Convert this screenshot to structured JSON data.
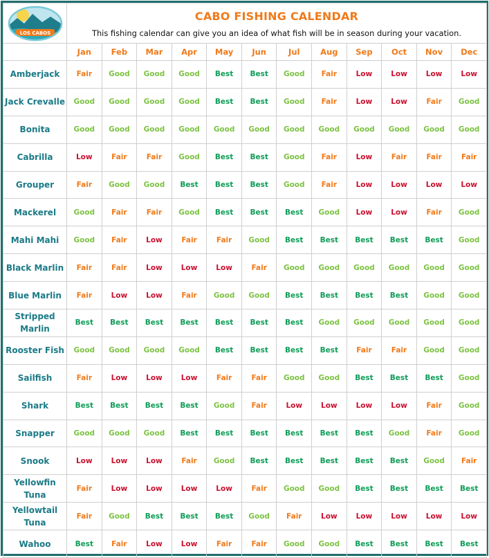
{
  "header": {
    "title": "CABO FISHING CALENDAR",
    "subtitle": "This fishing calendar can give you an idea of what fish will be in season during your vacation.",
    "logo_text": "LOS CABOS"
  },
  "colors": {
    "Best": "#0f9d58",
    "Good": "#7cc242",
    "Fair": "#f07a1a",
    "Low": "#c8102e",
    "fish_label": "#1a7a86",
    "accent": "#f07a1a",
    "border": "#1f6e6e"
  },
  "months": [
    "Jan",
    "Feb",
    "Mar",
    "Apr",
    "May",
    "Jun",
    "Jul",
    "Aug",
    "Sep",
    "Oct",
    "Nov",
    "Dec"
  ],
  "rows": [
    {
      "fish": "Amberjack",
      "ratings": [
        "Fair",
        "Good",
        "Good",
        "Good",
        "Best",
        "Best",
        "Good",
        "Fair",
        "Low",
        "Low",
        "Low",
        "Low"
      ]
    },
    {
      "fish": "Jack Crevalle",
      "ratings": [
        "Good",
        "Good",
        "Good",
        "Good",
        "Best",
        "Best",
        "Good",
        "Fair",
        "Low",
        "Low",
        "Fair",
        "Good"
      ]
    },
    {
      "fish": "Bonita",
      "ratings": [
        "Good",
        "Good",
        "Good",
        "Good",
        "Good",
        "Good",
        "Good",
        "Good",
        "Good",
        "Good",
        "Good",
        "Good"
      ]
    },
    {
      "fish": "Cabrilla",
      "ratings": [
        "Low",
        "Fair",
        "Fair",
        "Good",
        "Best",
        "Best",
        "Good",
        "Fair",
        "Low",
        "Fair",
        "Fair",
        "Fair"
      ]
    },
    {
      "fish": "Grouper",
      "ratings": [
        "Fair",
        "Good",
        "Good",
        "Best",
        "Best",
        "Best",
        "Good",
        "Fair",
        "Low",
        "Low",
        "Low",
        "Low"
      ]
    },
    {
      "fish": "Mackerel",
      "ratings": [
        "Good",
        "Fair",
        "Fair",
        "Good",
        "Best",
        "Best",
        "Best",
        "Good",
        "Low",
        "Low",
        "Fair",
        "Good"
      ]
    },
    {
      "fish": "Mahi Mahi",
      "ratings": [
        "Good",
        "Fair",
        "Low",
        "Fair",
        "Fair",
        "Good",
        "Best",
        "Best",
        "Best",
        "Best",
        "Best",
        "Good"
      ]
    },
    {
      "fish": "Black Marlin",
      "ratings": [
        "Fair",
        "Fair",
        "Low",
        "Low",
        "Low",
        "Fair",
        "Good",
        "Good",
        "Good",
        "Good",
        "Good",
        "Good"
      ]
    },
    {
      "fish": "Blue Marlin",
      "ratings": [
        "Fair",
        "Low",
        "Low",
        "Fair",
        "Good",
        "Good",
        "Best",
        "Best",
        "Best",
        "Best",
        "Good",
        "Good"
      ]
    },
    {
      "fish": "Stripped Marlin",
      "ratings": [
        "Best",
        "Best",
        "Best",
        "Best",
        "Best",
        "Best",
        "Best",
        "Good",
        "Good",
        "Good",
        "Good",
        "Good"
      ]
    },
    {
      "fish": "Rooster Fish",
      "ratings": [
        "Good",
        "Good",
        "Good",
        "Good",
        "Best",
        "Best",
        "Best",
        "Best",
        "Fair",
        "Fair",
        "Good",
        "Good"
      ]
    },
    {
      "fish": "Sailfish",
      "ratings": [
        "Fair",
        "Low",
        "Low",
        "Low",
        "Fair",
        "Fair",
        "Good",
        "Good",
        "Best",
        "Best",
        "Best",
        "Good"
      ]
    },
    {
      "fish": "Shark",
      "ratings": [
        "Best",
        "Best",
        "Best",
        "Best",
        "Good",
        "Fair",
        "Low",
        "Low",
        "Low",
        "Low",
        "Fair",
        "Good"
      ]
    },
    {
      "fish": "Snapper",
      "ratings": [
        "Good",
        "Good",
        "Good",
        "Best",
        "Best",
        "Best",
        "Best",
        "Best",
        "Best",
        "Good",
        "Fair",
        "Good"
      ]
    },
    {
      "fish": "Snook",
      "ratings": [
        "Low",
        "Low",
        "Low",
        "Fair",
        "Good",
        "Best",
        "Best",
        "Best",
        "Best",
        "Best",
        "Good",
        "Fair"
      ]
    },
    {
      "fish": "Yellowfin Tuna",
      "ratings": [
        "Fair",
        "Low",
        "Low",
        "Low",
        "Low",
        "Fair",
        "Good",
        "Good",
        "Best",
        "Best",
        "Best",
        "Best"
      ]
    },
    {
      "fish": "Yellowtail Tuna",
      "ratings": [
        "Fair",
        "Good",
        "Best",
        "Best",
        "Best",
        "Good",
        "Fair",
        "Low",
        "Low",
        "Low",
        "Low",
        "Low"
      ]
    },
    {
      "fish": "Wahoo",
      "ratings": [
        "Best",
        "Fair",
        "Low",
        "Low",
        "Fair",
        "Fair",
        "Good",
        "Good",
        "Best",
        "Best",
        "Best",
        "Best"
      ]
    }
  ]
}
